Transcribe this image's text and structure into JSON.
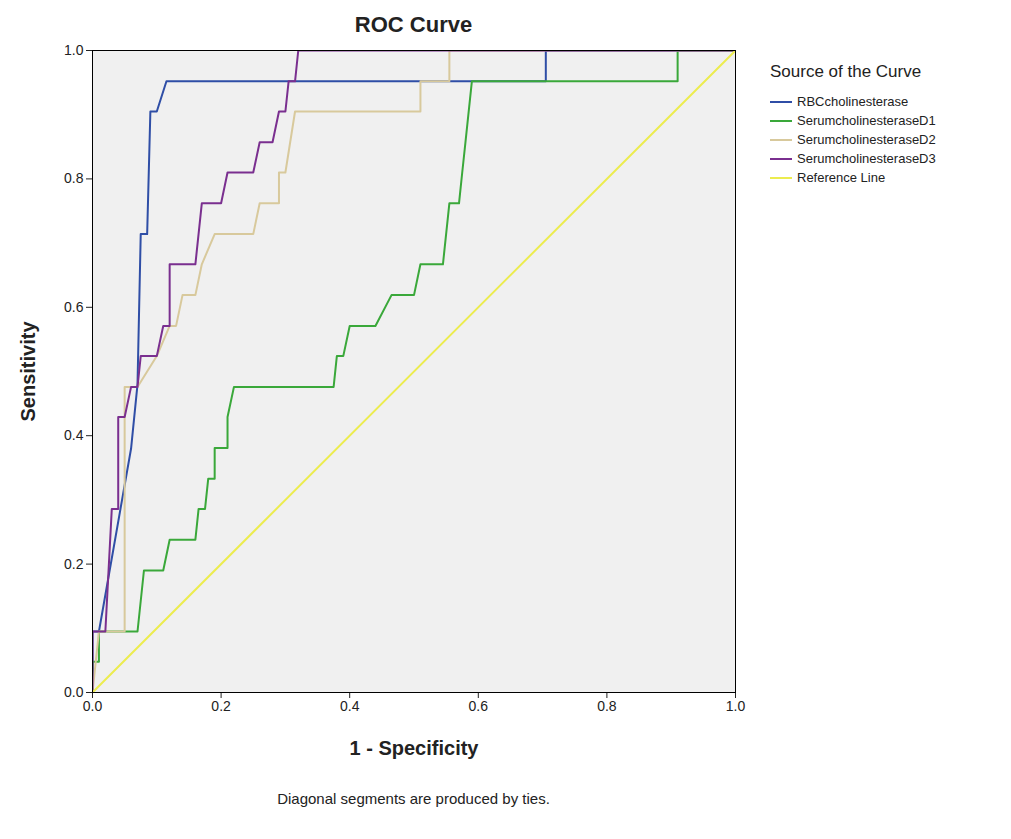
{
  "chart_data": {
    "type": "line",
    "title": "ROC Curve",
    "x_label": "1 - Specificity",
    "y_label": "Sensitivity",
    "legend_title": "Source of the Curve",
    "caption": "Diagonal segments are produced by ties.",
    "legend": "right",
    "xlim": [
      0,
      1
    ],
    "ylim": [
      0,
      1
    ],
    "xticks": [
      {
        "value": 0,
        "label": "0.0"
      },
      {
        "value": 0.2,
        "label": "0.2"
      },
      {
        "value": 0.4,
        "label": "0.4"
      },
      {
        "value": 0.6,
        "label": "0.6"
      },
      {
        "value": 0.8,
        "label": "0.8"
      },
      {
        "value": 1,
        "label": "1.0"
      }
    ],
    "yticks": [
      {
        "value": 0,
        "label": "0.0"
      },
      {
        "value": 0.2,
        "label": "0.2"
      },
      {
        "value": 0.4,
        "label": "0.4"
      },
      {
        "value": 0.6,
        "label": "0.6"
      },
      {
        "value": 0.8,
        "label": "0.8"
      },
      {
        "value": 1,
        "label": "1.0"
      }
    ],
    "series": [
      {
        "name": "RBCcholinesterase",
        "color": "#2f4ea6",
        "x": [
          0,
          0,
          0.01,
          0.06,
          0.07,
          0.075,
          0.085,
          0.09,
          0.1,
          0.115,
          0.705,
          0.705,
          1
        ],
        "values": [
          0,
          0.095,
          0.095,
          0.38,
          0.48,
          0.714,
          0.714,
          0.905,
          0.905,
          0.952,
          0.952,
          1,
          1
        ]
      },
      {
        "name": "SerumcholinesteraseD1",
        "color": "#3aa83a",
        "x": [
          0,
          0,
          0.01,
          0.01,
          0.07,
          0.08,
          0.11,
          0.12,
          0.16,
          0.165,
          0.175,
          0.18,
          0.19,
          0.19,
          0.21,
          0.21,
          0.22,
          0.375,
          0.38,
          0.39,
          0.4,
          0.44,
          0.465,
          0.5,
          0.51,
          0.545,
          0.555,
          0.57,
          0.575,
          0.58,
          0.59,
          0.91,
          0.91,
          1
        ],
        "values": [
          0,
          0.048,
          0.048,
          0.095,
          0.095,
          0.19,
          0.19,
          0.238,
          0.238,
          0.286,
          0.286,
          0.333,
          0.333,
          0.381,
          0.381,
          0.429,
          0.476,
          0.476,
          0.524,
          0.524,
          0.571,
          0.571,
          0.619,
          0.619,
          0.667,
          0.667,
          0.762,
          0.762,
          0.81,
          0.857,
          0.952,
          0.952,
          1,
          1
        ]
      },
      {
        "name": "SerumcholinesteraseD2",
        "color": "#d8c99c",
        "x": [
          0,
          0.01,
          0.05,
          0.05,
          0.07,
          0.1,
          0.12,
          0.13,
          0.14,
          0.16,
          0.17,
          0.19,
          0.25,
          0.26,
          0.29,
          0.29,
          0.3,
          0.315,
          0.51,
          0.51,
          0.555,
          0.555,
          1
        ],
        "values": [
          0,
          0.095,
          0.095,
          0.476,
          0.476,
          0.524,
          0.571,
          0.571,
          0.619,
          0.619,
          0.667,
          0.714,
          0.714,
          0.762,
          0.762,
          0.81,
          0.81,
          0.905,
          0.905,
          0.952,
          0.952,
          1,
          1
        ]
      },
      {
        "name": "SerumcholinesteraseD3",
        "color": "#7a2f8f",
        "x": [
          0,
          0,
          0.02,
          0.03,
          0.04,
          0.04,
          0.05,
          0.06,
          0.07,
          0.075,
          0.1,
          0.11,
          0.12,
          0.12,
          0.16,
          0.17,
          0.2,
          0.21,
          0.25,
          0.26,
          0.28,
          0.29,
          0.3,
          0.305,
          0.315,
          0.32,
          1
        ],
        "values": [
          0,
          0.095,
          0.095,
          0.286,
          0.286,
          0.429,
          0.429,
          0.476,
          0.476,
          0.524,
          0.524,
          0.571,
          0.571,
          0.667,
          0.667,
          0.762,
          0.762,
          0.81,
          0.81,
          0.857,
          0.857,
          0.905,
          0.905,
          0.952,
          0.952,
          1,
          1
        ]
      },
      {
        "name": "Reference Line",
        "color": "#ecec4f",
        "x": [
          0,
          1
        ],
        "values": [
          0,
          1
        ]
      }
    ]
  }
}
